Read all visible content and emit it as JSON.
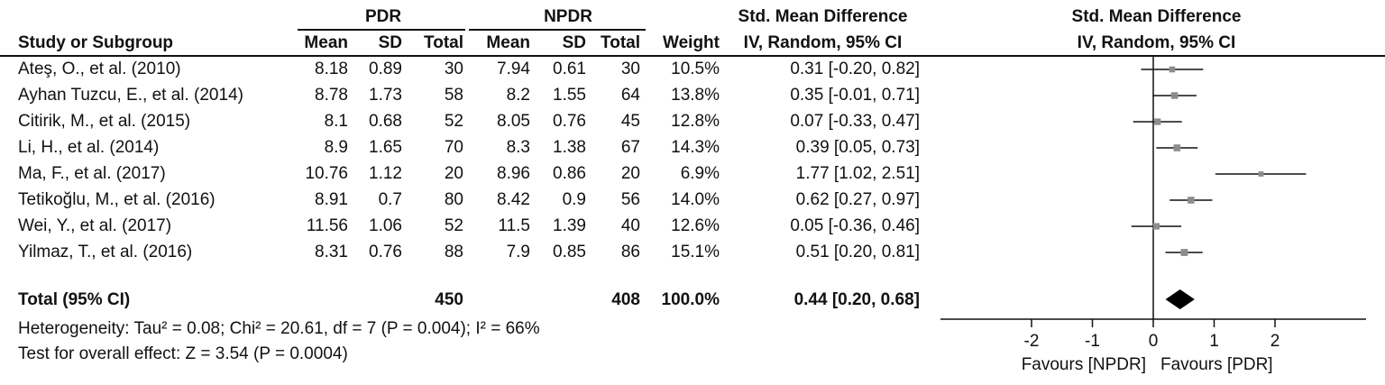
{
  "headers": {
    "group1": "PDR",
    "group2": "NPDR",
    "smd_top": "Std. Mean Difference",
    "smd_sub": "IV, Random, 95% CI",
    "plot_top": "Std. Mean Difference",
    "plot_sub": "IV, Random, 95% CI",
    "study": "Study or Subgroup",
    "mean": "Mean",
    "sd": "SD",
    "total": "Total",
    "weight": "Weight"
  },
  "studies": [
    {
      "name": "Ateş, O., et al. (2010)",
      "pdr_mean": "8.18",
      "pdr_sd": "0.89",
      "pdr_total": "30",
      "npdr_mean": "7.94",
      "npdr_sd": "0.61",
      "npdr_total": "30",
      "weight": "10.5%",
      "ci_text": "0.31 [-0.20, 0.82]"
    },
    {
      "name": "Ayhan Tuzcu, E., et al. (2014)",
      "pdr_mean": "8.78",
      "pdr_sd": "1.73",
      "pdr_total": "58",
      "npdr_mean": "8.2",
      "npdr_sd": "1.55",
      "npdr_total": "64",
      "weight": "13.8%",
      "ci_text": "0.35 [-0.01, 0.71]"
    },
    {
      "name": "Citirik, M., et al. (2015)",
      "pdr_mean": "8.1",
      "pdr_sd": "0.68",
      "pdr_total": "52",
      "npdr_mean": "8.05",
      "npdr_sd": "0.76",
      "npdr_total": "45",
      "weight": "12.8%",
      "ci_text": "0.07 [-0.33, 0.47]"
    },
    {
      "name": "Li, H., et al. (2014)",
      "pdr_mean": "8.9",
      "pdr_sd": "1.65",
      "pdr_total": "70",
      "npdr_mean": "8.3",
      "npdr_sd": "1.38",
      "npdr_total": "67",
      "weight": "14.3%",
      "ci_text": "0.39 [0.05, 0.73]"
    },
    {
      "name": "Ma, F., et al. (2017)",
      "pdr_mean": "10.76",
      "pdr_sd": "1.12",
      "pdr_total": "20",
      "npdr_mean": "8.96",
      "npdr_sd": "0.86",
      "npdr_total": "20",
      "weight": "6.9%",
      "ci_text": "1.77 [1.02, 2.51]"
    },
    {
      "name": "Tetikoğlu, M., et al. (2016)",
      "pdr_mean": "8.91",
      "pdr_sd": "0.7",
      "pdr_total": "80",
      "npdr_mean": "8.42",
      "npdr_sd": "0.9",
      "npdr_total": "56",
      "weight": "14.0%",
      "ci_text": "0.62 [0.27, 0.97]"
    },
    {
      "name": "Wei, Y., et al. (2017)",
      "pdr_mean": "11.56",
      "pdr_sd": "1.06",
      "pdr_total": "52",
      "npdr_mean": "11.5",
      "npdr_sd": "1.39",
      "npdr_total": "40",
      "weight": "12.6%",
      "ci_text": "0.05 [-0.36, 0.46]"
    },
    {
      "name": "Yilmaz, T., et al. (2016)",
      "pdr_mean": "8.31",
      "pdr_sd": "0.76",
      "pdr_total": "88",
      "npdr_mean": "7.9",
      "npdr_sd": "0.85",
      "npdr_total": "86",
      "weight": "15.1%",
      "ci_text": "0.51 [0.20, 0.81]"
    }
  ],
  "total": {
    "label": "Total (95% CI)",
    "pdr_total": "450",
    "npdr_total": "408",
    "weight": "100.0%",
    "ci_text": "0.44 [0.20, 0.68]"
  },
  "heterogeneity": "Heterogeneity: Tau² = 0.08; Chi² = 20.61, df = 7 (P = 0.004); I² = 66%",
  "overall_effect": "Test for overall effect: Z = 3.54 (P = 0.0004)",
  "chart_data": {
    "type": "scatter",
    "title": "Std. Mean Difference",
    "subtitle": "IV, Random, 95% CI",
    "categories": [
      "Ateş, O., et al. (2010)",
      "Ayhan Tuzcu, E., et al. (2014)",
      "Citirik, M., et al. (2015)",
      "Li, H., et al. (2014)",
      "Ma, F., et al. (2017)",
      "Tetikoğlu, M., et al. (2016)",
      "Wei, Y., et al. (2017)",
      "Yilmaz, T., et al. (2016)"
    ],
    "estimates": [
      0.31,
      0.35,
      0.07,
      0.39,
      1.77,
      0.62,
      0.05,
      0.51
    ],
    "ci_lower": [
      -0.2,
      -0.01,
      -0.33,
      0.05,
      1.02,
      0.27,
      -0.36,
      0.2
    ],
    "ci_upper": [
      0.82,
      0.71,
      0.47,
      0.73,
      2.51,
      0.97,
      0.46,
      0.81
    ],
    "weights": [
      10.5,
      13.8,
      12.8,
      14.3,
      6.9,
      14.0,
      12.6,
      15.1
    ],
    "pooled": {
      "estimate": 0.44,
      "lower": 0.2,
      "upper": 0.68
    },
    "xlim": [
      -2.5,
      2.5
    ],
    "xticks": [
      -2,
      -1,
      0,
      1,
      2
    ],
    "xtick_labels": [
      "-2",
      "-1",
      "0",
      "1",
      "2"
    ],
    "xlabel_left": "Favours [NPDR]",
    "xlabel_right": "Favours [PDR]",
    "marker_color": "#8c8c8c",
    "line_color": "#111111"
  }
}
